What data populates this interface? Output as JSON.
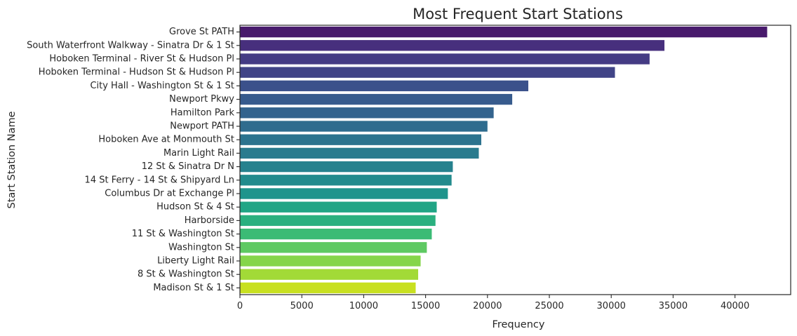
{
  "chart_data": {
    "type": "bar",
    "orientation": "horizontal",
    "title": "Most Frequent Start Stations",
    "xlabel": "Frequency",
    "ylabel": "Start Station Name",
    "xlim": [
      0,
      44500
    ],
    "xticks": [
      0,
      5000,
      10000,
      15000,
      20000,
      25000,
      30000,
      35000,
      40000
    ],
    "grid": false,
    "colormap": "viridis",
    "categories": [
      "Grove St PATH",
      "South Waterfront Walkway - Sinatra Dr & 1 St",
      "Hoboken Terminal - River St & Hudson Pl",
      "Hoboken Terminal - Hudson St & Hudson Pl",
      "City Hall - Washington St & 1 St",
      "Newport Pkwy",
      "Hamilton Park",
      "Newport PATH",
      "Hoboken Ave at Monmouth St",
      "Marin Light Rail",
      "12 St & Sinatra Dr N",
      "14 St Ferry - 14 St & Shipyard Ln",
      "Columbus Dr at Exchange Pl",
      "Hudson St & 4 St",
      "Harborside",
      "11 St & Washington St",
      "Washington St",
      "Liberty Light Rail",
      "8 St & Washington St",
      "Madison St & 1 St"
    ],
    "values": [
      42600,
      34300,
      33100,
      30300,
      23300,
      22000,
      20500,
      20000,
      19500,
      19300,
      17200,
      17100,
      16800,
      15900,
      15800,
      15500,
      15100,
      14600,
      14400,
      14200
    ],
    "colors": [
      "#481a6c",
      "#472f7d",
      "#443b84",
      "#414487",
      "#3b518b",
      "#375b8d",
      "#33638d",
      "#2f6c8e",
      "#2c738e",
      "#297b8e",
      "#26828e",
      "#228b8d",
      "#1f948c",
      "#21a585",
      "#2ab07f",
      "#3bbb75",
      "#5ec962",
      "#85d54a",
      "#a2da37",
      "#c8e020"
    ]
  }
}
